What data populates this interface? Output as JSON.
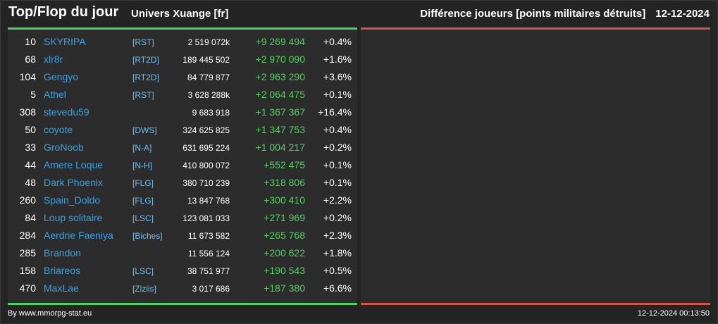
{
  "header": {
    "title": "Top/Flop du jour",
    "univers": "Univers Xuange [fr]",
    "subtitle": "Différence joueurs [points militaires détruits]",
    "date": "12-12-2024"
  },
  "colors": {
    "background": "#242424",
    "panel": "#2c2c2c",
    "top_line": "#4cd45c",
    "flop_line": "#e0504a",
    "player_name": "#35a4e4",
    "alliance": "#6cc0f0",
    "gain": "#4cd45c"
  },
  "top": [
    {
      "rank": "10",
      "name": "SKYRIPA",
      "alliance": "[RST]",
      "points": "2 519 072k",
      "diff": "+9 269 494",
      "pct": "+0.4%"
    },
    {
      "rank": "68",
      "name": "xlr8r",
      "alliance": "[RT2D]",
      "points": "189 445 502",
      "diff": "+2 970 090",
      "pct": "+1.6%"
    },
    {
      "rank": "104",
      "name": "Gengyo",
      "alliance": "[RT2D]",
      "points": "84 779 877",
      "diff": "+2 963 290",
      "pct": "+3.6%"
    },
    {
      "rank": "5",
      "name": "Athel",
      "alliance": "[RST]",
      "points": "3 628 288k",
      "diff": "+2 064 475",
      "pct": "+0.1%"
    },
    {
      "rank": "308",
      "name": "stevedu59",
      "alliance": "",
      "points": "9 683 918",
      "diff": "+1 367 367",
      "pct": "+16.4%"
    },
    {
      "rank": "50",
      "name": "coyote",
      "alliance": "[DWS]",
      "points": "324 625 825",
      "diff": "+1 347 753",
      "pct": "+0.4%"
    },
    {
      "rank": "33",
      "name": "GroNoob",
      "alliance": "[N-A]",
      "points": "631 695 224",
      "diff": "+1 004 217",
      "pct": "+0.2%"
    },
    {
      "rank": "44",
      "name": "Amere Loque",
      "alliance": "[N-H]",
      "points": "410 800 072",
      "diff": "+552 475",
      "pct": "+0.1%"
    },
    {
      "rank": "48",
      "name": "Dark Phoenix",
      "alliance": "[FLG]",
      "points": "380 710 239",
      "diff": "+318 806",
      "pct": "+0.1%"
    },
    {
      "rank": "260",
      "name": "Spain_Doldo",
      "alliance": "[FLG]",
      "points": "13 847 768",
      "diff": "+300 410",
      "pct": "+2.2%"
    },
    {
      "rank": "84",
      "name": "Loup solitaire",
      "alliance": "[LSC]",
      "points": "123 081 033",
      "diff": "+271 969",
      "pct": "+0.2%"
    },
    {
      "rank": "284",
      "name": "Aerdrie Faeniya",
      "alliance": "[Biches]",
      "points": "11 673 582",
      "diff": "+265 768",
      "pct": "+2.3%"
    },
    {
      "rank": "285",
      "name": "Brandon",
      "alliance": "",
      "points": "11 556 124",
      "diff": "+200 622",
      "pct": "+1.8%"
    },
    {
      "rank": "158",
      "name": "Briareos",
      "alliance": "[LSC]",
      "points": "38 751 977",
      "diff": "+190 543",
      "pct": "+0.5%"
    },
    {
      "rank": "470",
      "name": "MaxLae",
      "alliance": "[Ziziis]",
      "points": "3 017 686",
      "diff": "+187 380",
      "pct": "+6.6%"
    }
  ],
  "footer": {
    "credit": "By www.mmorpg-stat.eu",
    "timestamp": "12-12-2024 00:13:50"
  }
}
